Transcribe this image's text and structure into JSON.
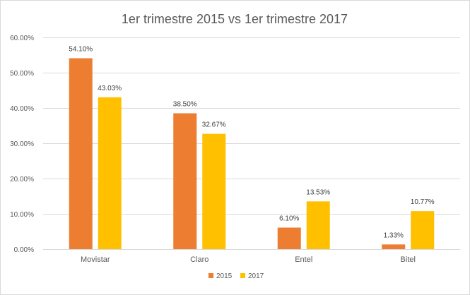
{
  "chart_data": {
    "type": "bar",
    "title": "1er trimestre 2015 vs 1er trimestre 2017",
    "xlabel": "",
    "ylabel": "",
    "categories": [
      "Movistar",
      "Claro",
      "Entel",
      "Bitel"
    ],
    "series": [
      {
        "name": "2015",
        "color": "#ed7d31",
        "values": [
          54.1,
          38.5,
          6.1,
          1.33
        ],
        "labels": [
          "54.10%",
          "38.50%",
          "6.10%",
          "1.33%"
        ]
      },
      {
        "name": "2017",
        "color": "#ffc000",
        "values": [
          43.03,
          32.67,
          13.53,
          10.77
        ],
        "labels": [
          "43.03%",
          "32.67%",
          "13.53%",
          "10.77%"
        ]
      }
    ],
    "ylim": [
      0,
      60
    ],
    "yticks": [
      0,
      10,
      20,
      30,
      40,
      50,
      60
    ],
    "ytick_labels": [
      "0.00%",
      "10.00%",
      "20.00%",
      "30.00%",
      "40.00%",
      "50.00%",
      "60.00%"
    ],
    "grid": true,
    "legend_position": "bottom"
  }
}
